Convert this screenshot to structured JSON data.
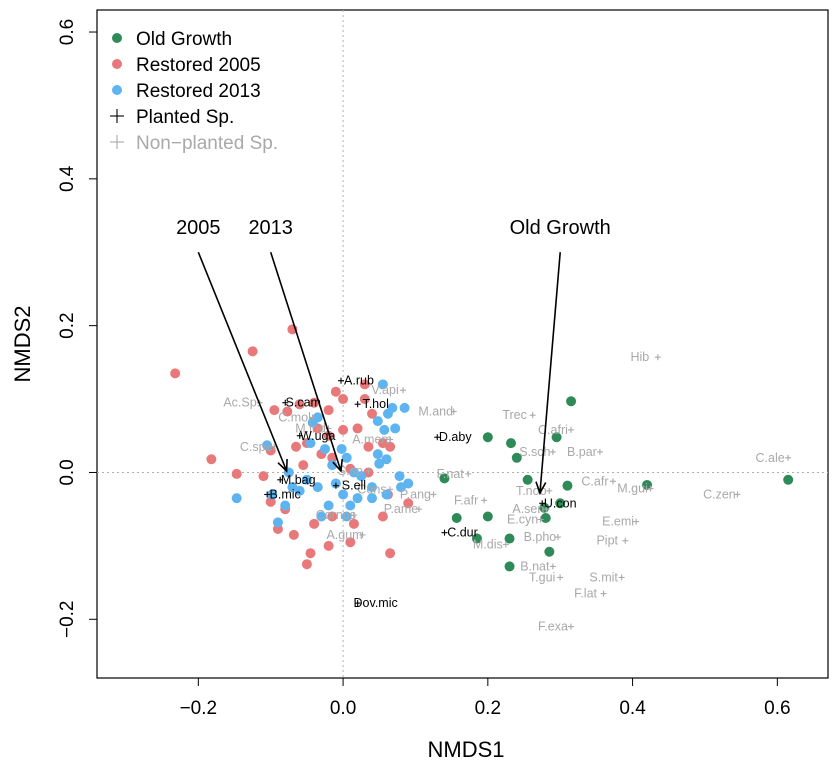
{
  "chart_data": {
    "type": "scatter",
    "title": "",
    "xlabel": "NMDS1",
    "ylabel": "NMDS2",
    "xlim": [
      -0.34,
      0.67
    ],
    "ylim": [
      -0.28,
      0.63
    ],
    "xticks": [
      -0.2,
      0.0,
      0.2,
      0.4,
      0.6
    ],
    "yticks": [
      -0.2,
      0.0,
      0.2,
      0.4,
      0.6
    ],
    "xtick_labels": [
      "−0.2",
      "0.0",
      "0.2",
      "0.4",
      "0.6"
    ],
    "ytick_labels": [
      "−0.2",
      "0.0",
      "0.2",
      "0.4",
      "0.6"
    ],
    "reference_lines": {
      "x": 0,
      "y": 0,
      "style": "dotted"
    },
    "legend": {
      "position": "top-left",
      "entries": [
        {
          "label": "Old Growth",
          "marker": "dot",
          "color": "#2e8b57"
        },
        {
          "label": "Restored 2005",
          "marker": "dot",
          "color": "#e8787a"
        },
        {
          "label": "Restored 2013",
          "marker": "dot",
          "color": "#5eb4f0"
        },
        {
          "label": "Planted Sp.",
          "marker": "plus",
          "color": "#000000"
        },
        {
          "label": "Non−planted Sp.",
          "marker": "plus",
          "color": "#aaaaaa"
        }
      ]
    },
    "series": [
      {
        "name": "Old Growth",
        "color": "#2e8b57",
        "points": [
          [
            0.615,
            -0.01
          ],
          [
            0.42,
            -0.017
          ],
          [
            0.315,
            0.097
          ],
          [
            0.295,
            0.048
          ],
          [
            0.232,
            0.04
          ],
          [
            0.24,
            0.02
          ],
          [
            0.2,
            0.048
          ],
          [
            0.14,
            -0.008
          ],
          [
            0.255,
            -0.01
          ],
          [
            0.31,
            -0.018
          ],
          [
            0.3,
            -0.042
          ],
          [
            0.278,
            -0.048
          ],
          [
            0.157,
            -0.062
          ],
          [
            0.2,
            -0.06
          ],
          [
            0.185,
            -0.09
          ],
          [
            0.23,
            -0.09
          ],
          [
            0.28,
            -0.062
          ],
          [
            0.285,
            -0.108
          ],
          [
            0.23,
            -0.128
          ]
        ]
      },
      {
        "name": "Restored 2005",
        "color": "#e8787a",
        "points": [
          [
            -0.232,
            0.135
          ],
          [
            -0.125,
            0.165
          ],
          [
            -0.07,
            0.195
          ],
          [
            -0.182,
            0.018
          ],
          [
            -0.147,
            -0.002
          ],
          [
            -0.1,
            0.03
          ],
          [
            -0.095,
            0.085
          ],
          [
            -0.077,
            0.083
          ],
          [
            -0.06,
            0.093
          ],
          [
            -0.04,
            0.095
          ],
          [
            -0.02,
            0.085
          ],
          [
            -0.01,
            0.11
          ],
          [
            0.0,
            0.1
          ],
          [
            0.03,
            0.1
          ],
          [
            0.04,
            0.08
          ],
          [
            -0.035,
            0.06
          ],
          [
            -0.02,
            0.05
          ],
          [
            0.0,
            0.058
          ],
          [
            0.02,
            0.06
          ],
          [
            0.035,
            0.035
          ],
          [
            0.055,
            0.04
          ],
          [
            0.065,
            0.035
          ],
          [
            -0.065,
            0.035
          ],
          [
            -0.05,
            0.04
          ],
          [
            -0.03,
            0.025
          ],
          [
            -0.015,
            0.02
          ],
          [
            -0.055,
            0.01
          ],
          [
            0.01,
            0.005
          ],
          [
            0.035,
            0.0
          ],
          [
            -0.11,
            -0.005
          ],
          [
            -0.1,
            -0.04
          ],
          [
            -0.08,
            -0.05
          ],
          [
            -0.068,
            -0.085
          ],
          [
            -0.09,
            -0.077
          ],
          [
            -0.04,
            -0.07
          ],
          [
            -0.045,
            -0.11
          ],
          [
            -0.05,
            -0.125
          ],
          [
            -0.02,
            -0.1
          ],
          [
            -0.015,
            -0.06
          ],
          [
            0.015,
            -0.07
          ],
          [
            0.01,
            -0.095
          ],
          [
            0.055,
            -0.06
          ],
          [
            0.065,
            -0.11
          ],
          [
            0.062,
            -0.03
          ],
          [
            0.09,
            -0.042
          ],
          [
            0.03,
            0.12
          ]
        ]
      },
      {
        "name": "Restored 2013",
        "color": "#5eb4f0",
        "points": [
          [
            -0.147,
            -0.035
          ],
          [
            -0.098,
            -0.03
          ],
          [
            -0.09,
            -0.068
          ],
          [
            -0.105,
            0.037
          ],
          [
            -0.075,
            0.0
          ],
          [
            -0.07,
            -0.02
          ],
          [
            -0.06,
            -0.025
          ],
          [
            -0.05,
            -0.01
          ],
          [
            -0.045,
            0.04
          ],
          [
            -0.042,
            0.068
          ],
          [
            -0.035,
            0.075
          ],
          [
            -0.025,
            0.032
          ],
          [
            -0.015,
            0.01
          ],
          [
            0.005,
            0.02
          ],
          [
            0.015,
            0.0
          ],
          [
            0.025,
            -0.005
          ],
          [
            -0.01,
            -0.015
          ],
          [
            0.0,
            -0.03
          ],
          [
            0.02,
            -0.035
          ],
          [
            0.04,
            -0.02
          ],
          [
            0.05,
            0.012
          ],
          [
            0.06,
            0.018
          ],
          [
            0.048,
            0.07
          ],
          [
            0.057,
            0.058
          ],
          [
            0.062,
            0.08
          ],
          [
            0.068,
            0.088
          ],
          [
            0.085,
            0.088
          ],
          [
            0.072,
            0.06
          ],
          [
            0.055,
            0.12
          ],
          [
            0.048,
            0.025
          ],
          [
            0.078,
            -0.005
          ],
          [
            0.08,
            -0.02
          ],
          [
            0.06,
            -0.03
          ],
          [
            0.04,
            -0.035
          ],
          [
            0.01,
            -0.045
          ],
          [
            0.005,
            -0.06
          ],
          [
            -0.02,
            -0.045
          ],
          [
            -0.03,
            -0.06
          ],
          [
            -0.035,
            -0.02
          ],
          [
            -0.08,
            -0.045
          ],
          [
            0.09,
            -0.015
          ],
          [
            -0.002,
            0.032
          ]
        ]
      }
    ],
    "planted_species": [
      {
        "label": "A.rub",
        "x": 0.022,
        "y": 0.125
      },
      {
        "label": "S.cam",
        "x": -0.055,
        "y": 0.095
      },
      {
        "label": "T.hol",
        "x": 0.045,
        "y": 0.093
      },
      {
        "label": "W.uga",
        "x": -0.035,
        "y": 0.05
      },
      {
        "label": "D.aby",
        "x": 0.155,
        "y": 0.048
      },
      {
        "label": "M.bag",
        "x": -0.062,
        "y": -0.01
      },
      {
        "label": "S.ell",
        "x": 0.015,
        "y": -0.018
      },
      {
        "label": "U.con",
        "x": 0.3,
        "y": -0.042
      },
      {
        "label": "B.mic",
        "x": -0.08,
        "y": -0.03
      },
      {
        "label": "C.dur",
        "x": 0.165,
        "y": -0.082
      },
      {
        "label": "Dov.mic",
        "x": 0.045,
        "y": -0.178
      }
    ],
    "nonplanted_species": [
      {
        "label": "Hib",
        "x": 0.41,
        "y": 0.157
      },
      {
        "label": "V.api",
        "x": 0.058,
        "y": 0.112
      },
      {
        "label": "Ac.Sp.",
        "x": -0.14,
        "y": 0.095
      },
      {
        "label": "M.and",
        "x": 0.128,
        "y": 0.083
      },
      {
        "label": "Trec",
        "x": 0.237,
        "y": 0.078
      },
      {
        "label": "C.mol",
        "x": -0.067,
        "y": 0.075
      },
      {
        "label": "M.ind",
        "x": -0.045,
        "y": 0.06
      },
      {
        "label": "C.afri",
        "x": 0.29,
        "y": 0.058
      },
      {
        "label": "A.mem",
        "x": 0.04,
        "y": 0.045
      },
      {
        "label": "C.spe",
        "x": -0.12,
        "y": 0.035
      },
      {
        "label": "S.sch",
        "x": 0.265,
        "y": 0.028
      },
      {
        "label": "B.par",
        "x": 0.33,
        "y": 0.028
      },
      {
        "label": "C.ale",
        "x": 0.59,
        "y": 0.02
      },
      {
        "label": "S.sp",
        "x": 0.01,
        "y": 0.002
      },
      {
        "label": "F.nat",
        "x": 0.148,
        "y": -0.002
      },
      {
        "label": "C.afr",
        "x": 0.348,
        "y": -0.012
      },
      {
        "label": "Cons",
        "x": 0.04,
        "y": -0.023
      },
      {
        "label": "T.nob",
        "x": 0.26,
        "y": -0.025
      },
      {
        "label": "M.gui",
        "x": 0.4,
        "y": -0.022
      },
      {
        "label": "C.zen",
        "x": 0.52,
        "y": -0.03
      },
      {
        "label": "P.ang",
        "x": 0.1,
        "y": -0.03
      },
      {
        "label": "F.afr",
        "x": 0.17,
        "y": -0.038
      },
      {
        "label": "A.sen",
        "x": 0.256,
        "y": -0.05
      },
      {
        "label": "P.ame",
        "x": 0.08,
        "y": -0.05
      },
      {
        "label": "Cornus",
        "x": -0.01,
        "y": -0.058
      },
      {
        "label": "E.cyn",
        "x": 0.248,
        "y": -0.064
      },
      {
        "label": "E.emi",
        "x": 0.38,
        "y": -0.067
      },
      {
        "label": "A.gum",
        "x": 0.002,
        "y": -0.085
      },
      {
        "label": "B.pho",
        "x": 0.272,
        "y": -0.088
      },
      {
        "label": "M.dis",
        "x": 0.2,
        "y": -0.098
      },
      {
        "label": "Pipt",
        "x": 0.365,
        "y": -0.093
      },
      {
        "label": "B.nat",
        "x": 0.265,
        "y": -0.128
      },
      {
        "label": "T.gui",
        "x": 0.275,
        "y": -0.143
      },
      {
        "label": "S.mit",
        "x": 0.36,
        "y": -0.143
      },
      {
        "label": "F.lat",
        "x": 0.335,
        "y": -0.165
      },
      {
        "label": "F.exa",
        "x": 0.29,
        "y": -0.21
      }
    ],
    "annotations": [
      {
        "label": "2005",
        "text_x": -0.2,
        "text_y": 0.325,
        "arrow_from": [
          -0.2,
          0.3
        ],
        "arrow_to": [
          -0.078,
          0.002
        ]
      },
      {
        "label": "2013",
        "text_x": -0.1,
        "text_y": 0.325,
        "arrow_from": [
          -0.1,
          0.3
        ],
        "arrow_to": [
          -0.003,
          0.002
        ]
      },
      {
        "label": "Old Growth",
        "text_x": 0.3,
        "text_y": 0.325,
        "arrow_from": [
          0.3,
          0.3
        ],
        "arrow_to": [
          0.272,
          -0.028
        ]
      }
    ]
  }
}
